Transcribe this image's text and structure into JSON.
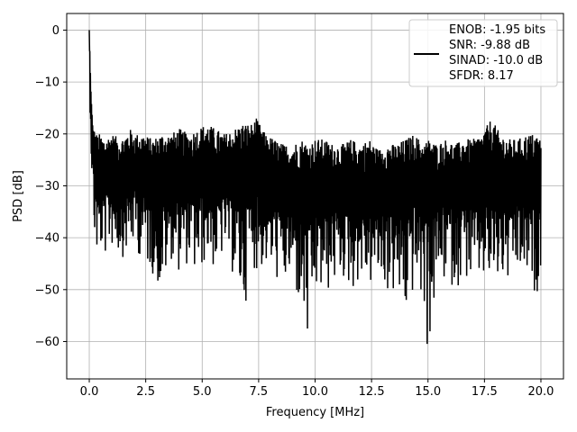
{
  "chart_data": {
    "type": "line",
    "xlabel": "Frequency [MHz]",
    "ylabel": "PSD [dB]",
    "xlim": [
      -0.999,
      20.999
    ],
    "ylim": [
      -67.2,
      3.2
    ],
    "x_ticks": [
      0.0,
      2.5,
      5.0,
      7.5,
      10.0,
      12.5,
      15.0,
      17.5,
      20.0
    ],
    "x_tick_labels": [
      "0.0",
      "2.5",
      "5.0",
      "7.5",
      "10.0",
      "12.5",
      "15.0",
      "17.5",
      "20.0"
    ],
    "y_ticks": [
      0,
      -10,
      -20,
      -30,
      -40,
      -50,
      -60
    ],
    "y_tick_labels": [
      "0",
      "−10",
      "−20",
      "−30",
      "−40",
      "−50",
      "−60"
    ],
    "grid": true,
    "legend_position": "top-right",
    "legend_lines": [
      "ENOB: -1.95 bits",
      "SNR: -9.88 dB",
      "SINAD: -10.0 dB",
      "SFDR: 8.17"
    ],
    "series": [
      {
        "color": "#000000",
        "x": [
          0.0,
          0.05,
          0.1,
          0.15,
          0.2,
          0.3,
          0.4,
          0.5,
          0.7,
          1.0,
          1.4,
          1.8,
          2.0,
          2.4,
          2.8,
          3.2,
          3.6,
          4.0,
          4.4,
          4.8,
          5.2,
          5.6,
          6.0,
          6.4,
          6.8,
          7.2,
          7.4,
          7.8,
          8.2,
          8.6,
          9.0,
          9.4,
          9.7,
          10.0,
          10.4,
          10.8,
          11.2,
          11.6,
          12.0,
          12.4,
          12.8,
          13.2,
          13.6,
          14.0,
          14.4,
          14.8,
          15.0,
          15.4,
          15.8,
          16.2,
          16.6,
          17.0,
          17.4,
          17.8,
          18.2,
          18.6,
          19.0,
          19.4,
          19.8,
          20.0
        ],
        "y": [
          0.0,
          -10.0,
          -16.0,
          -22.0,
          -25.0,
          -28.0,
          -30.0,
          -31.0,
          -29.0,
          -28.0,
          -30.0,
          -29.0,
          -28.0,
          -29.0,
          -30.0,
          -29.0,
          -30.0,
          -29.0,
          -30.0,
          -29.0,
          -28.0,
          -30.0,
          -29.0,
          -30.0,
          -28.0,
          -29.0,
          -28.0,
          -30.0,
          -31.0,
          -32.0,
          -32.0,
          -31.0,
          -32.0,
          -31.0,
          -32.0,
          -31.0,
          -32.0,
          -31.0,
          -32.0,
          -31.0,
          -32.0,
          -31.0,
          -32.0,
          -31.0,
          -30.0,
          -31.0,
          -30.0,
          -31.0,
          -30.0,
          -31.0,
          -30.0,
          -31.0,
          -30.0,
          -29.0,
          -30.0,
          -31.0,
          -30.0,
          -31.0,
          -30.0,
          -32.0
        ],
        "upper_envelope": [
          0.0,
          -8.0,
          -14.0,
          -18.0,
          -19.0,
          -20.0,
          -20.0,
          -20.0,
          -21.0,
          -20.0,
          -21.0,
          -19.0,
          -20.0,
          -20.0,
          -21.0,
          -20.0,
          -20.0,
          -19.0,
          -20.0,
          -19.0,
          -18.0,
          -19.0,
          -20.0,
          -19.0,
          -18.0,
          -18.0,
          -17.0,
          -20.0,
          -21.0,
          -22.0,
          -22.0,
          -21.0,
          -22.0,
          -21.0,
          -21.0,
          -22.0,
          -22.0,
          -21.0,
          -22.0,
          -21.0,
          -23.0,
          -22.0,
          -22.0,
          -21.0,
          -20.0,
          -22.0,
          -21.0,
          -22.0,
          -21.0,
          -22.0,
          -21.0,
          -21.0,
          -20.0,
          -17.0,
          -20.0,
          -21.0,
          -21.0,
          -20.0,
          -20.0,
          -21.0
        ],
        "lower_envelope": [
          -4.0,
          -20.0,
          -28.0,
          -36.0,
          -40.0,
          -45.0,
          -44.0,
          -43.0,
          -44.0,
          -42.0,
          -44.0,
          -43.0,
          -42.0,
          -45.0,
          -47.0,
          -52.0,
          -44.0,
          -47.0,
          -45.0,
          -49.0,
          -44.0,
          -47.0,
          -43.0,
          -48.0,
          -56.0,
          -45.0,
          -47.0,
          -46.0,
          -48.0,
          -50.0,
          -49.0,
          -56.0,
          -64.5,
          -52.0,
          -52.0,
          -50.0,
          -48.0,
          -51.0,
          -48.0,
          -50.0,
          -49.0,
          -51.0,
          -52.0,
          -57.0,
          -50.0,
          -54.0,
          -64.0,
          -50.0,
          -49.0,
          -50.0,
          -48.0,
          -50.0,
          -49.0,
          -51.0,
          -49.0,
          -50.0,
          -48.0,
          -49.0,
          -52.0,
          -45.0
        ]
      }
    ]
  }
}
